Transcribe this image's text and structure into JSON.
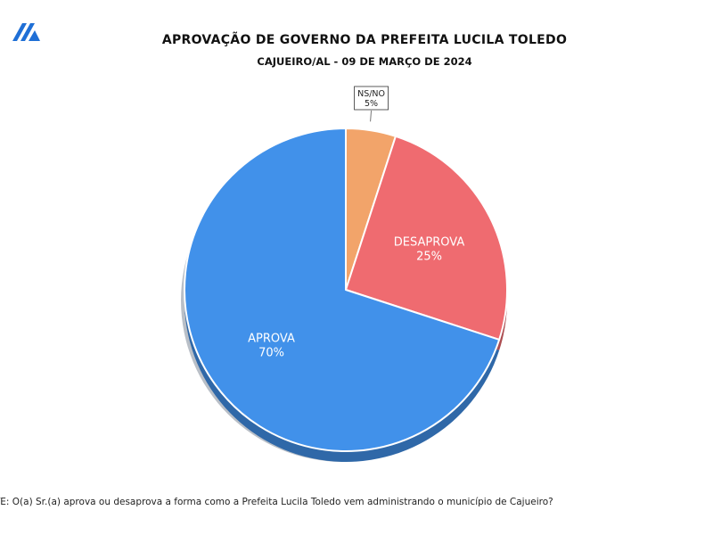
{
  "title": "APROVAÇÃO DE GOVERNO DA PREFEITA LUCILA TOLEDO",
  "subtitle": "CAJUEIRO/AL - 09 DE MARÇO DE 2024",
  "footnote": "NTE: O(a) Sr.(a) aprova ou desaprova a forma como a Prefeita Lucila Toledo vem administrando o município de Cajueiro?",
  "logo_icon": "brand-logo-icon",
  "chart_data": {
    "type": "pie",
    "slices": [
      {
        "label": "NS/NO",
        "value": 5,
        "value_label": "5%",
        "color": "#f2a46a"
      },
      {
        "label": "DESAPROVA",
        "value": 25,
        "value_label": "25%",
        "color": "#ef6b70"
      },
      {
        "label": "APROVA",
        "value": 70,
        "value_label": "70%",
        "color": "#4191ea"
      }
    ],
    "start": "12 o'clock, clockwise",
    "legend": "none"
  }
}
